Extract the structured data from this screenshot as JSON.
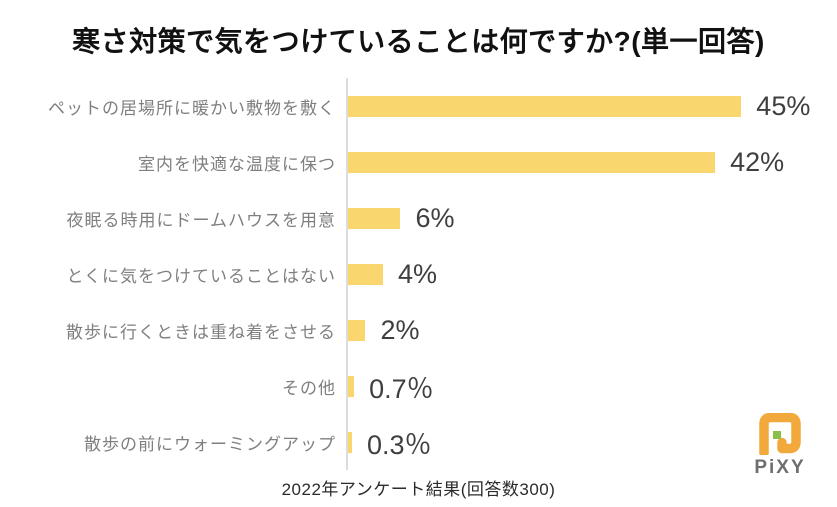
{
  "chart_data": {
    "type": "bar",
    "orientation": "horizontal",
    "title": "寒さ対策で気をつけていることは何ですか?(単一回答)",
    "categories": [
      "ペットの居場所に暖かい敷物を敷く",
      "室内を快適な温度に保つ",
      "夜眠る時用にドームハウスを用意",
      "とくに気をつけていることはない",
      "散歩に行くときは重ね着をさせる",
      "その他",
      "散歩の前にウォーミングアップ"
    ],
    "values": [
      45,
      42,
      6,
      4,
      2,
      0.7,
      0.3
    ],
    "value_labels": [
      "45%",
      "42%",
      "6%",
      "4%",
      "2%",
      "0.7％",
      "0.3％"
    ],
    "xlim": [
      0,
      47
    ],
    "grid": false,
    "legend": false,
    "bar_color": "#fad76e",
    "axis_color": "#dcdcdc"
  },
  "footer": {
    "note": "2022年アンケート結果(回答数300)"
  },
  "logo": {
    "text": "PiXY",
    "mark_color": "#f2a93b",
    "accent_color": "#8cbe4a",
    "text_color": "#6e6e6e"
  },
  "colors": {
    "background": "#ffffff",
    "title_text": "#111111",
    "category_text": "#7f7f7f",
    "value_text": "#3f3f3f"
  }
}
